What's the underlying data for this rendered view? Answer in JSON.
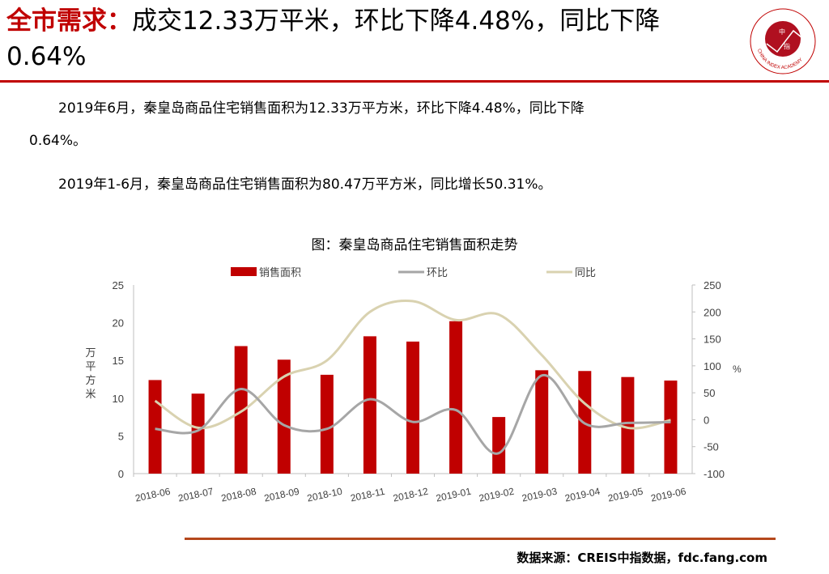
{
  "header": {
    "title_highlight": "全市需求：",
    "title_rest": "成交12.33万平米，环比下降4.48%，同比下降0.64%"
  },
  "logo": {
    "text": "中国指数研究院 CHINA INDEX ACADEMY",
    "inner": "中指"
  },
  "body": {
    "p1": "2019年6月，秦皇岛商品住宅销售面积为12.33万平方米，环比下降4.48%，同比下降",
    "p1b": "0.64%。",
    "p2": "2019年1-6月，秦皇岛商品住宅销售面积为80.47万平方米，同比增长50.31%。"
  },
  "footer": {
    "source": "数据来源：CREIS中指数据，fdc.fang.com"
  },
  "chart_data": {
    "type": "bar+line",
    "title": "图：秦皇岛商品住宅销售面积走势",
    "categories": [
      "2018-06",
      "2018-07",
      "2018-08",
      "2018-09",
      "2018-10",
      "2018-11",
      "2018-12",
      "2019-01",
      "2019-02",
      "2019-03",
      "2019-04",
      "2019-05",
      "2019-06"
    ],
    "ylabel": "万平方米",
    "y2label": "%",
    "ylim": [
      0,
      25
    ],
    "yticks": [
      0,
      5,
      10,
      15,
      20,
      25
    ],
    "y2lim": [
      -100,
      250
    ],
    "y2ticks": [
      -100,
      -50,
      0,
      50,
      100,
      150,
      200,
      250
    ],
    "legend_position": "top",
    "series": [
      {
        "name": "销售面积",
        "type": "bar",
        "axis": "left",
        "color": "#c00000",
        "values": [
          12.4,
          10.6,
          16.9,
          15.1,
          13.1,
          18.2,
          17.5,
          20.2,
          7.5,
          13.7,
          13.6,
          12.8,
          12.33
        ]
      },
      {
        "name": "环比",
        "type": "line",
        "axis": "right",
        "color": "#a6a6a6",
        "values": [
          -17,
          -20,
          57,
          -10,
          -17,
          38,
          -4,
          18,
          -62,
          82,
          -7,
          -6,
          -4.48
        ]
      },
      {
        "name": "同比",
        "type": "line",
        "axis": "right",
        "color": "#d9d2b0",
        "values": [
          35,
          -15,
          15,
          80,
          110,
          200,
          220,
          185,
          195,
          120,
          30,
          -15,
          -0.64
        ]
      }
    ]
  }
}
